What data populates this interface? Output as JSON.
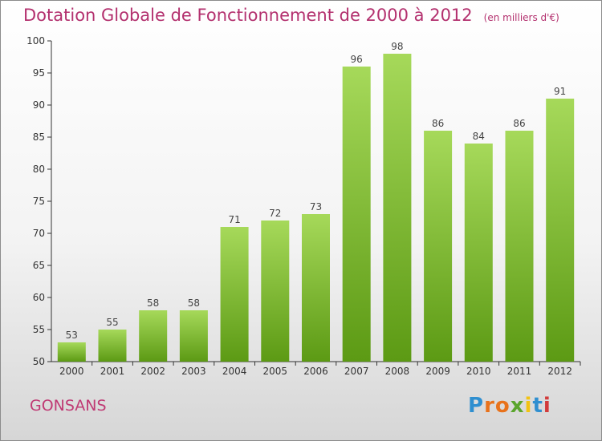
{
  "header": {
    "title": "Dotation Globale de Fonctionnement de 2000 à 2012",
    "unit_note": "(en milliers d'€)"
  },
  "footer": {
    "commune": "GONSANS",
    "brand": {
      "letters": [
        "P",
        "r",
        "o",
        "x",
        "i",
        "t",
        "i"
      ],
      "colors": [
        "#2f8fd0",
        "#e8721b",
        "#e8721b",
        "#5aa52c",
        "#f2c313",
        "#2f8fd0",
        "#d23b3b"
      ]
    }
  },
  "colors": {
    "accent": "#b3306e",
    "bar_light": "#a6d95a",
    "bar_dark": "#5c9a14"
  },
  "chart_data": {
    "type": "bar",
    "categories": [
      "2000",
      "2001",
      "2002",
      "2003",
      "2004",
      "2005",
      "2006",
      "2007",
      "2008",
      "2009",
      "2010",
      "2011",
      "2012"
    ],
    "values": [
      53,
      55,
      58,
      58,
      71,
      72,
      73,
      96,
      98,
      86,
      84,
      86,
      91
    ],
    "ylim": [
      50,
      100
    ],
    "yticks": [
      50,
      55,
      60,
      65,
      70,
      75,
      80,
      85,
      90,
      95,
      100
    ],
    "grid": false,
    "title": "Dotation Globale de Fonctionnement de 2000 à 2012",
    "subtitle": "(en milliers d'€)"
  }
}
